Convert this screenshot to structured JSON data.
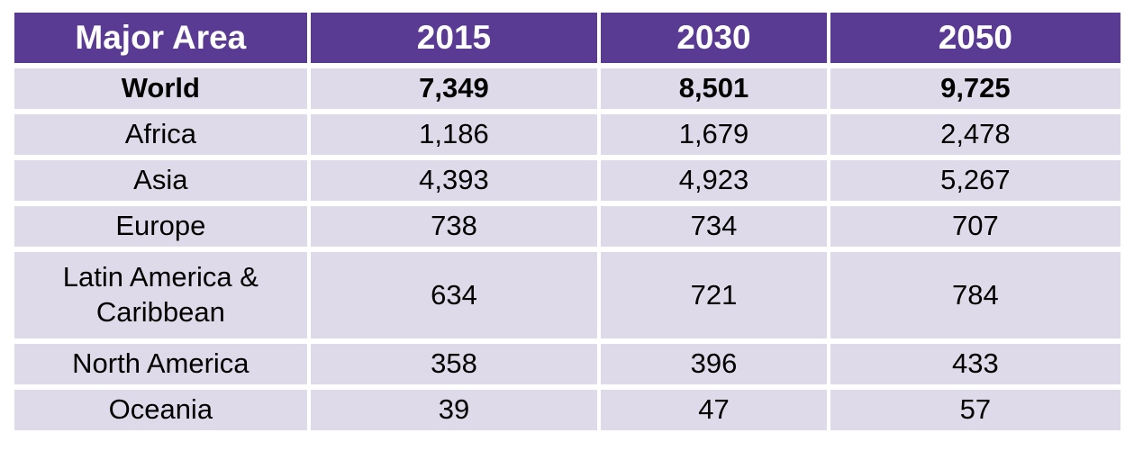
{
  "chart_data": {
    "type": "table",
    "columns": [
      "Major Area",
      "2015",
      "2030",
      "2050"
    ],
    "rows": [
      [
        "World",
        "7,349",
        "8,501",
        "9,725"
      ],
      [
        "Africa",
        "1,186",
        "1,679",
        "2,478"
      ],
      [
        "Asia",
        "4,393",
        "4,923",
        "5,267"
      ],
      [
        "Europe",
        "738",
        "734",
        "707"
      ],
      [
        "Latin America & Caribbean",
        "634",
        "721",
        "784"
      ],
      [
        "North America",
        "358",
        "396",
        "433"
      ],
      [
        "Oceania",
        "39",
        "47",
        "57"
      ]
    ],
    "emphasized_row": "World",
    "legend_position": "none",
    "grid": "white cell gutters"
  },
  "colors": {
    "header_bg": "#5a3b94",
    "header_text": "#ffffff",
    "row_bg": "#dfdae9",
    "body_text": "#000000",
    "page_bg": "#ffffff"
  }
}
